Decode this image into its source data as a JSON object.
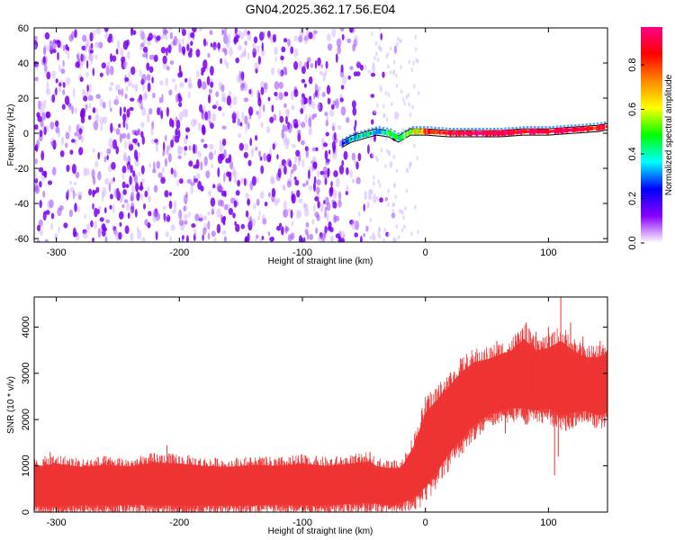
{
  "title": "GN04.2025.362.17.56.E04",
  "chart_data": [
    {
      "type": "heatmap",
      "title": "GN04.2025.362.17.56.E04",
      "xlabel": "Height of straight line (km)",
      "ylabel": "Frequency (Hz)",
      "xlim": [
        -318,
        148
      ],
      "ylim": [
        -62,
        60
      ],
      "xticks": [
        -300,
        -200,
        -100,
        0,
        100
      ],
      "xtick_labels": [
        "-300",
        "-200",
        "-100",
        "0",
        "100"
      ],
      "yticks": [
        -60,
        -40,
        -20,
        0,
        20,
        40,
        60
      ],
      "ytick_labels": [
        "-60",
        "-40",
        "-20",
        "0",
        "20",
        "40",
        "60"
      ],
      "colorbar": {
        "label": "Normalized spectral amplitude",
        "range": [
          0,
          0.97
        ],
        "ticks": [
          0,
          0.2,
          0.4,
          0.6,
          0.8
        ],
        "tick_labels": [
          "0.0",
          "0.2",
          "0.4",
          "0.6",
          "0.8"
        ],
        "colormap": [
          "#ffffff",
          "#8800ff",
          "#0000ff",
          "#00ffff",
          "#00ff00",
          "#ffff00",
          "#ff8800",
          "#ff0000",
          "#ff0088"
        ]
      },
      "noise_region": {
        "x": [
          -318,
          -45
        ],
        "frequency": [
          -62,
          60
        ],
        "amplitude": 0.2
      },
      "signal_track": [
        {
          "x": -68,
          "frequency": -6,
          "amplitude": 0.3
        },
        {
          "x": -60,
          "frequency": -3,
          "amplitude": 0.35
        },
        {
          "x": -50,
          "frequency": -1,
          "amplitude": 0.4
        },
        {
          "x": -40,
          "frequency": 1,
          "amplitude": 0.35
        },
        {
          "x": -30,
          "frequency": 0,
          "amplitude": 0.45
        },
        {
          "x": -22,
          "frequency": -3,
          "amplitude": 0.45
        },
        {
          "x": -12,
          "frequency": 1,
          "amplitude": 0.55
        },
        {
          "x": 0,
          "frequency": 1,
          "amplitude": 0.8
        },
        {
          "x": 20,
          "frequency": 0,
          "amplitude": 0.9
        },
        {
          "x": 40,
          "frequency": 0,
          "amplitude": 0.95
        },
        {
          "x": 60,
          "frequency": 0,
          "amplitude": 0.95
        },
        {
          "x": 80,
          "frequency": 1,
          "amplitude": 0.9
        },
        {
          "x": 100,
          "frequency": 1,
          "amplitude": 0.95
        },
        {
          "x": 120,
          "frequency": 2,
          "amplitude": 0.95
        },
        {
          "x": 140,
          "frequency": 3,
          "amplitude": 0.85
        },
        {
          "x": 148,
          "frequency": 4,
          "amplitude": 0.8
        }
      ]
    },
    {
      "type": "area",
      "xlabel": "Height of straight line (km)",
      "ylabel": "SNR (10 * v/v)",
      "xlim": [
        -318,
        148
      ],
      "ylim": [
        0,
        4650
      ],
      "xticks": [
        -300,
        -200,
        -100,
        0,
        100
      ],
      "xtick_labels": [
        "-300",
        "-200",
        "-100",
        "0",
        "100"
      ],
      "yticks": [
        0,
        1000,
        2000,
        3000,
        4000
      ],
      "ytick_labels": [
        "0",
        "1000",
        "2000",
        "3000",
        "4000"
      ],
      "color": "#ee3333",
      "series": [
        {
          "x": [
            -318,
            -300,
            -280,
            -260,
            -240,
            -220,
            -200,
            -180,
            -160,
            -140,
            -120,
            -100,
            -80,
            -60,
            -45,
            -40,
            -30,
            -20,
            -10,
            0,
            10,
            20,
            30,
            40,
            50,
            60,
            70,
            80,
            90,
            100,
            110,
            120,
            130,
            140,
            148
          ],
          "lower": [
            150,
            120,
            150,
            140,
            160,
            150,
            130,
            150,
            140,
            150,
            160,
            150,
            150,
            180,
            200,
            190,
            150,
            200,
            300,
            550,
            900,
            1300,
            1600,
            1900,
            2100,
            2200,
            2250,
            2250,
            2200,
            2250,
            2100,
            2150,
            2200,
            2100,
            2150
          ],
          "upper": [
            980,
            1050,
            980,
            1020,
            990,
            1080,
            1050,
            1000,
            980,
            1020,
            1000,
            1050,
            1000,
            1050,
            1100,
            1000,
            950,
            950,
            1400,
            2150,
            2450,
            2750,
            3050,
            3250,
            3300,
            3400,
            3500,
            3750,
            3500,
            3550,
            3700,
            3500,
            3350,
            3350,
            3450
          ],
          "peaks": [
            [
              -305,
              1300
            ],
            [
              -210,
              1450
            ],
            [
              -45,
              1300
            ],
            [
              -30,
              1100
            ],
            [
              30,
              3200
            ],
            [
              58,
              3700
            ],
            [
              82,
              4100
            ],
            [
              90,
              3900
            ],
            [
              100,
              4000
            ],
            [
              110,
              4650
            ],
            [
              118,
              4100
            ],
            [
              128,
              3800
            ],
            [
              142,
              3700
            ]
          ],
          "dips": [
            [
              65,
              1700
            ],
            [
              105,
              800
            ],
            [
              108,
              1200
            ]
          ]
        }
      ]
    }
  ]
}
